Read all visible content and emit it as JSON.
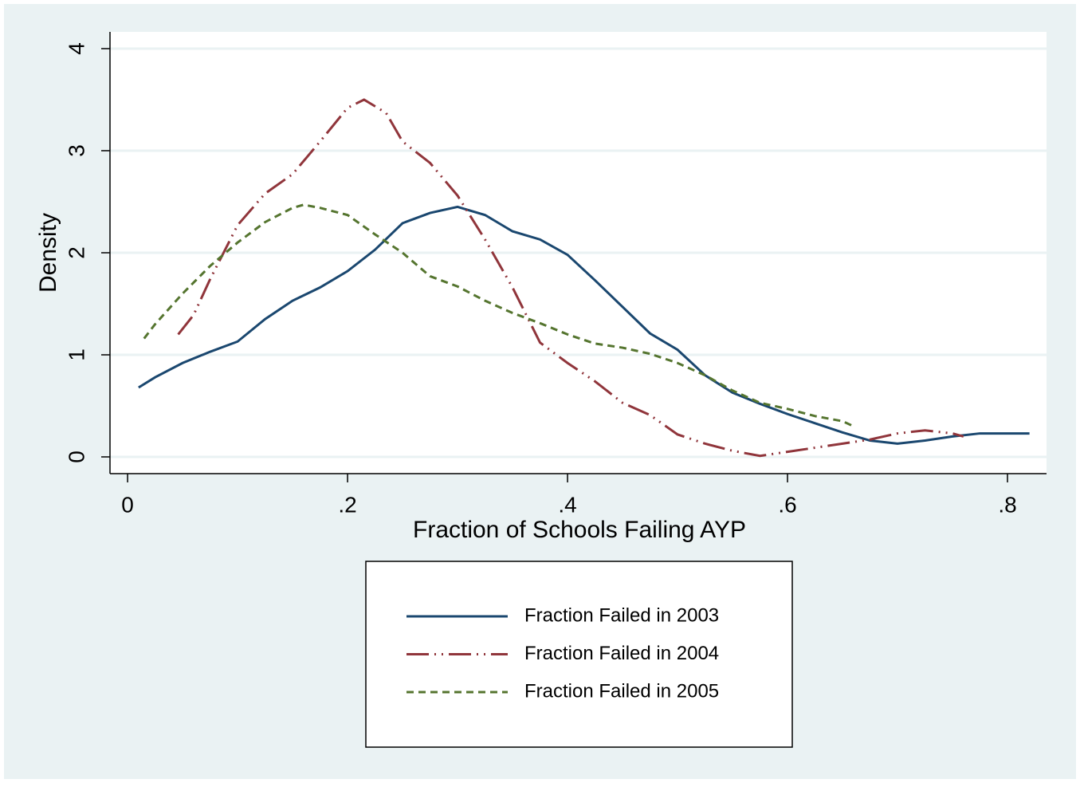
{
  "chart_data": {
    "type": "line",
    "xlabel": "Fraction of Schools Failing AYP",
    "ylabel": "Density",
    "xlim": [
      -0.016,
      0.8355
    ],
    "ylim": [
      -0.164,
      4.164
    ],
    "xticks": [
      0,
      {
        "value": 0.2,
        "label": ".2"
      },
      {
        "value": 0.4,
        "label": ".4"
      },
      {
        "value": 0.6,
        "label": ".6"
      },
      {
        "value": 0.8,
        "label": ".8"
      }
    ],
    "yticks": [
      0,
      1,
      2,
      3,
      4
    ],
    "grid": true,
    "legend": "bottom",
    "series": [
      {
        "name": "Fraction Failed in 2003",
        "color": "#1a476f",
        "line_style": "solid",
        "x": [
          0.01,
          0.025,
          0.05,
          0.075,
          0.1,
          0.125,
          0.15,
          0.175,
          0.2,
          0.225,
          0.25,
          0.275,
          0.3,
          0.325,
          0.35,
          0.375,
          0.4,
          0.425,
          0.45,
          0.475,
          0.5,
          0.525,
          0.55,
          0.575,
          0.6,
          0.625,
          0.65,
          0.675,
          0.7,
          0.725,
          0.75,
          0.775,
          0.8,
          0.82
        ],
        "values": [
          0.68,
          0.78,
          0.92,
          1.03,
          1.13,
          1.35,
          1.53,
          1.66,
          1.82,
          2.03,
          2.29,
          2.39,
          2.45,
          2.37,
          2.21,
          2.13,
          1.98,
          1.73,
          1.47,
          1.21,
          1.05,
          0.8,
          0.63,
          0.52,
          0.42,
          0.33,
          0.24,
          0.16,
          0.13,
          0.16,
          0.2,
          0.23,
          0.23,
          0.23
        ]
      },
      {
        "name": "Fraction Failed in 2004",
        "color": "#90353b",
        "line_style": "longdash-dot-dot",
        "x": [
          0.046,
          0.06,
          0.075,
          0.1,
          0.125,
          0.15,
          0.175,
          0.2,
          0.215,
          0.235,
          0.25,
          0.275,
          0.3,
          0.325,
          0.35,
          0.375,
          0.4,
          0.425,
          0.45,
          0.475,
          0.5,
          0.525,
          0.55,
          0.575,
          0.6,
          0.625,
          0.65,
          0.675,
          0.7,
          0.725,
          0.75,
          0.76
        ],
        "values": [
          1.2,
          1.39,
          1.74,
          2.27,
          2.58,
          2.77,
          3.09,
          3.42,
          3.5,
          3.37,
          3.09,
          2.88,
          2.56,
          2.13,
          1.66,
          1.12,
          0.92,
          0.74,
          0.53,
          0.41,
          0.22,
          0.13,
          0.06,
          0.01,
          0.05,
          0.09,
          0.13,
          0.17,
          0.23,
          0.26,
          0.23,
          0.2
        ]
      },
      {
        "name": "Fraction Failed in 2005",
        "color": "#55752f",
        "line_style": "dash",
        "x": [
          0.015,
          0.025,
          0.05,
          0.075,
          0.1,
          0.125,
          0.15,
          0.16,
          0.175,
          0.2,
          0.225,
          0.25,
          0.275,
          0.3,
          0.325,
          0.35,
          0.375,
          0.4,
          0.425,
          0.45,
          0.475,
          0.5,
          0.525,
          0.55,
          0.575,
          0.6,
          0.625,
          0.65,
          0.66
        ],
        "values": [
          1.16,
          1.3,
          1.6,
          1.87,
          2.1,
          2.3,
          2.44,
          2.47,
          2.44,
          2.37,
          2.18,
          2.0,
          1.77,
          1.67,
          1.53,
          1.41,
          1.31,
          1.2,
          1.11,
          1.07,
          1.01,
          0.92,
          0.8,
          0.65,
          0.53,
          0.47,
          0.4,
          0.35,
          0.3
        ]
      }
    ]
  }
}
